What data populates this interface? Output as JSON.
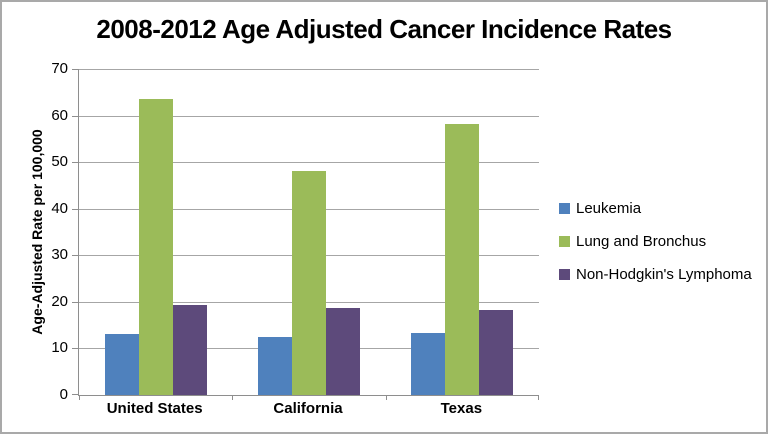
{
  "frame": {
    "background": "#ffffff",
    "border_color": "#a9a9a9"
  },
  "chart_data": {
    "type": "bar",
    "title": "2008-2012 Age Adjusted Cancer Incidence Rates",
    "xlabel": "",
    "ylabel": "Age-Adjusted Rate per 100,000",
    "categories": [
      "United States",
      "California",
      "Texas"
    ],
    "series": [
      {
        "name": "Leukemia",
        "color": "#4f81bd",
        "values": [
          13.2,
          12.5,
          13.3
        ]
      },
      {
        "name": "Lung and Bronchus",
        "color": "#9bbb59",
        "values": [
          63.5,
          48.0,
          58.2
        ]
      },
      {
        "name": "Non-Hodgkin's Lymphoma",
        "color": "#5d4a7b",
        "values": [
          19.3,
          18.7,
          18.3
        ]
      }
    ],
    "ylim": [
      0,
      70
    ],
    "yticks": [
      0,
      10,
      20,
      30,
      40,
      50,
      60,
      70
    ],
    "grid": true,
    "legend_position": "right",
    "gridline_color": "#a6a6a6",
    "axis_color": "#8e8e8e",
    "text_color": "#000000"
  }
}
